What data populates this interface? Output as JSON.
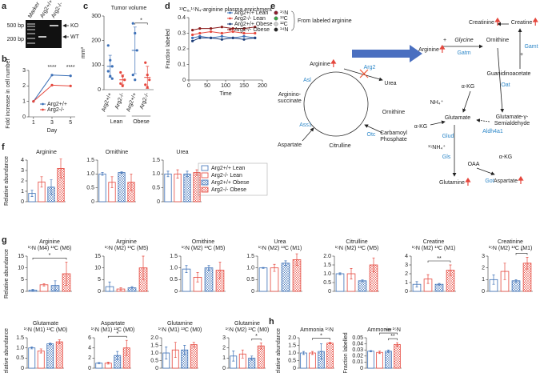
{
  "gel": {
    "panel": "a",
    "lanes": [
      "Marker",
      "Arg2+/+",
      "Arg2-/-"
    ],
    "sizes": [
      "500 bp",
      "200 bp"
    ],
    "bands": [
      "KO",
      "WT"
    ]
  },
  "diagram": {
    "panel": "e",
    "legend": [
      "¹⁵N",
      "¹³C",
      "¹²C",
      "¹⁴N"
    ],
    "legend_colors": [
      "#8b1c2c",
      "#3aa346",
      "#cfcfcf",
      "#222222"
    ],
    "legend_title": "From labeled arginine",
    "nodes": [
      "Arginine",
      "Urea",
      "Ornithine",
      "Citrulline",
      "Aspartate",
      "Arginino-",
      "succinate",
      "Carbamoyl",
      "Phosphate",
      "Asl",
      "Ass1",
      "Otc",
      "Arg2",
      "Arginine",
      "+",
      "Glycine",
      "Ornithine",
      "+",
      "Guanidinoacetate",
      "Gatm",
      "Creatine",
      "Creatinine",
      "Gamt",
      "α-KG",
      "Oat",
      "Glutamate",
      "Glutamate-γ-",
      "Semialdehyde",
      "Aldh4a1",
      "NH₄⁺",
      "α-KG",
      "Glud",
      "¹⁵NH₄⁺",
      "Gls",
      "Glutamine",
      "OAA",
      "α-KG",
      "Aspartate",
      "Got"
    ]
  },
  "legend": {
    "series": [
      {
        "name": "Arg2+/+ Lean",
        "color": "#3b6fb6",
        "pattern": "open"
      },
      {
        "name": "Arg2-/- Lean",
        "color": "#e5473d",
        "pattern": "open"
      },
      {
        "name": "Arg2+/+ Obese",
        "color": "#3b6fb6",
        "pattern": "hatched"
      },
      {
        "name": "Arg2-/- Obese",
        "color": "#e5473d",
        "pattern": "hatched"
      }
    ]
  },
  "chart_data": [
    {
      "panel": "b",
      "type": "line",
      "ylabel": "Fold increase in cell number",
      "xlabel": "Day",
      "x": [
        1,
        3,
        5
      ],
      "xlim": [
        0.5,
        5.5
      ],
      "xticks": [
        1,
        3,
        5
      ],
      "ylim": [
        0,
        3
      ],
      "yticks": [
        0,
        1,
        2,
        3
      ],
      "legend": "lower right",
      "series": [
        {
          "name": "Arg2+/+",
          "color": "#3b6fb6",
          "values": [
            1,
            2.7,
            2.65
          ]
        },
        {
          "name": "Arg2-/-",
          "color": "#e5473d",
          "values": [
            1,
            2.05,
            2.0
          ]
        }
      ],
      "annotations": [
        {
          "text": "****",
          "x": 3
        },
        {
          "text": "****",
          "x": 5
        }
      ]
    },
    {
      "panel": "c",
      "type": "dot",
      "title": "Tumor volume",
      "ylabel": "mm³",
      "categories": [
        "Arg2+/+",
        "Arg2-/-",
        "Arg2+/+",
        "Arg2-/-"
      ],
      "groups": [
        "Lean",
        "Obese"
      ],
      "colors": [
        "#3b6fb6",
        "#e5473d",
        "#3b6fb6",
        "#e5473d"
      ],
      "values": [
        95,
        40,
        160,
        50
      ],
      "errors": [
        45,
        20,
        95,
        45
      ],
      "points": [
        [
          180,
          120,
          95,
          75,
          55,
          45
        ],
        [
          70,
          55,
          40,
          25,
          15
        ],
        [
          270,
          230,
          160,
          60,
          40
        ],
        [
          110,
          60,
          40,
          20,
          10
        ]
      ],
      "ylim": [
        0,
        300
      ],
      "yticks": [
        0,
        100,
        200,
        300
      ],
      "sig": [
        {
          "text": "*",
          "bars": [
            2,
            3
          ]
        }
      ]
    },
    {
      "panel": "d",
      "type": "line",
      "title": "¹³C₆,¹⁵N₄-arginine plasma enrichment",
      "ylabel": "Fraction labeled",
      "xlabel": "Time",
      "x": [
        10,
        30,
        60,
        90,
        120,
        150,
        180
      ],
      "xlim": [
        0,
        200
      ],
      "xticks": [
        0,
        50,
        100,
        150,
        200
      ],
      "ylim": [
        0,
        0.4
      ],
      "yticks": [
        0,
        0.1,
        0.2,
        0.3,
        0.4
      ],
      "legend": "upper right",
      "series": [
        {
          "name": "Arg2+/+ Lean",
          "color": "#3b6fb6",
          "values": [
            0.27,
            0.28,
            0.27,
            0.28,
            0.27,
            0.28,
            0.27
          ]
        },
        {
          "name": "Arg2-/- Lean",
          "color": "#e5473d",
          "values": [
            0.29,
            0.3,
            0.31,
            0.3,
            0.31,
            0.3,
            0.3
          ]
        },
        {
          "name": "Arg2+/+ Obese",
          "color": "#1f3f7a",
          "values": [
            0.25,
            0.27,
            0.27,
            0.26,
            0.27,
            0.26,
            0.27
          ]
        },
        {
          "name": "Arg2-/- Obese",
          "color": "#8b1a1a",
          "values": [
            0.32,
            0.33,
            0.33,
            0.34,
            0.33,
            0.33,
            0.34
          ]
        }
      ]
    },
    {
      "panel": "f",
      "type": "bar",
      "title": "Arginine",
      "ylabel": "Relative abundance",
      "values": [
        0.8,
        1.9,
        1.4,
        3.2
      ],
      "errors": [
        0.3,
        0.5,
        0.7,
        0.9
      ],
      "ylim": [
        0,
        4
      ],
      "yticks": [
        0,
        1,
        2,
        3,
        4
      ]
    },
    {
      "type": "bar",
      "title": "Ornithine",
      "values": [
        1.0,
        0.7,
        1.05,
        0.7
      ],
      "errors": [
        0.05,
        0.2,
        0.03,
        0.3
      ],
      "ylim": [
        0,
        1.5
      ],
      "yticks": [
        0,
        0.5,
        {
          "value": 1,
          "label": "1.0"
        },
        1.5
      ]
    },
    {
      "type": "bar",
      "title": "Urea",
      "values": [
        1.0,
        1.0,
        1.0,
        1.05
      ],
      "errors": [
        0.1,
        0.15,
        0.1,
        0.1
      ],
      "ylim": [
        0,
        1.5
      ],
      "yticks": [
        0,
        0.5,
        {
          "value": 1,
          "label": "1.0"
        },
        1.5
      ]
    },
    {
      "panel": "g",
      "type": "bar",
      "title": "Arginine",
      "subtitle": "¹⁵N (M4) ¹³C (M6)",
      "ylabel": "Relative abundance",
      "values": [
        0.5,
        2.8,
        2.5,
        7.5
      ],
      "errors": [
        0.3,
        0.5,
        2,
        5
      ],
      "ylim": [
        0,
        15
      ],
      "yticks": [
        0,
        5,
        10,
        15
      ],
      "sig": [
        {
          "text": "*",
          "bars": [
            0,
            3
          ]
        }
      ]
    },
    {
      "type": "bar",
      "title": "Arginine",
      "subtitle": "¹⁵N (M2) ¹³C (M5)",
      "values": [
        2,
        1,
        1.5,
        10
      ],
      "errors": [
        2,
        0.5,
        0.5,
        5
      ],
      "ylim": [
        0,
        15
      ],
      "yticks": [
        0,
        5,
        10,
        15
      ]
    },
    {
      "type": "bar",
      "title": "Ornithine",
      "subtitle": "¹⁵N (M2) ¹³C (M5)",
      "values": [
        0.95,
        0.6,
        1.0,
        0.9
      ],
      "errors": [
        0.15,
        0.2,
        0.1,
        0.35
      ],
      "ylim": [
        0,
        1.5
      ],
      "yticks": [
        0,
        0.5,
        {
          "value": 1,
          "label": "1.0"
        },
        1.5
      ]
    },
    {
      "type": "bar",
      "title": "Urea",
      "subtitle": "¹⁵N (M2) ¹³C (M1)",
      "values": [
        1.0,
        1.0,
        1.2,
        1.35
      ],
      "errors": [
        0.02,
        0.15,
        0.1,
        0.25
      ],
      "ylim": [
        0,
        1.5
      ],
      "yticks": [
        0,
        0.5,
        {
          "value": 1,
          "label": "1.0"
        },
        1.5
      ]
    },
    {
      "type": "bar",
      "title": "Citrulline",
      "subtitle": "¹⁵N (M2) ¹³C (M5)",
      "values": [
        1.0,
        1.0,
        0.6,
        1.5
      ],
      "errors": [
        0.05,
        0.3,
        0.05,
        0.4
      ],
      "ylim": [
        0,
        2
      ],
      "yticks": [
        0,
        0.5,
        {
          "value": 1,
          "label": "1.0"
        },
        1.5,
        {
          "value": 2,
          "label": "2.0"
        }
      ]
    },
    {
      "type": "bar",
      "title": "Creatine",
      "subtitle": "¹⁵N (M2) ¹³C (M1)",
      "values": [
        0.8,
        1.4,
        0.8,
        2.4
      ],
      "errors": [
        0.3,
        0.5,
        0.1,
        0.6
      ],
      "ylim": [
        0,
        4
      ],
      "yticks": [
        0,
        1,
        2,
        3,
        4
      ],
      "sig": [
        {
          "text": "**",
          "bars": [
            1,
            3
          ]
        }
      ]
    },
    {
      "type": "bar",
      "title": "Creatinine",
      "subtitle": "¹⁵N (M2) ¹³C (M1)",
      "values": [
        1.0,
        1.7,
        0.9,
        2.4
      ],
      "errors": [
        0.4,
        0.7,
        0.1,
        0.5
      ],
      "ylim": [
        0,
        3
      ],
      "yticks": [
        0,
        1,
        2,
        3
      ],
      "sig": [
        {
          "text": "*",
          "bars": [
            2,
            3
          ]
        }
      ]
    },
    {
      "type": "bar",
      "title": "Glutamate",
      "subtitle": "¹⁵N (M1) ¹³C (M0)",
      "ylabel": "Relative abundance",
      "values": [
        1.0,
        0.85,
        1.2,
        1.3
      ],
      "errors": [
        0.05,
        0.1,
        0.05,
        0.1
      ],
      "ylim": [
        0,
        1.5
      ],
      "yticks": [
        0,
        0.5,
        {
          "value": 1,
          "label": "1.0"
        },
        1.5
      ]
    },
    {
      "type": "bar",
      "title": "Aspartate",
      "subtitle": "¹⁵N (M1) ¹³C (M0)",
      "values": [
        1.0,
        1.0,
        2.5,
        4.0
      ],
      "errors": [
        0.1,
        0.2,
        0.8,
        1.5
      ],
      "ylim": [
        0,
        6
      ],
      "yticks": [
        0,
        2,
        4,
        6
      ],
      "sig": [
        {
          "text": "*",
          "bars": [
            1,
            3
          ]
        }
      ]
    },
    {
      "type": "bar",
      "title": "Glutamine",
      "subtitle": "¹⁵N (M1) ¹³C (M0)",
      "values": [
        1.0,
        1.2,
        1.2,
        1.55
      ],
      "errors": [
        0.4,
        0.5,
        0.3,
        0.15
      ],
      "ylim": [
        0,
        2
      ],
      "yticks": [
        0,
        0.5,
        {
          "value": 1,
          "label": "1.0"
        },
        1.5,
        {
          "value": 2,
          "label": "2.0"
        }
      ]
    },
    {
      "type": "bar",
      "title": "Glutamine",
      "subtitle": "¹⁵N (M2) ¹³C (M0)",
      "values": [
        1.2,
        1.4,
        1.0,
        2.2
      ],
      "errors": [
        0.5,
        0.4,
        0.2,
        0.3
      ],
      "ylim": [
        0,
        3
      ],
      "yticks": [
        0,
        1,
        2,
        3
      ],
      "sig": [
        {
          "text": "*",
          "bars": [
            2,
            3
          ]
        }
      ]
    },
    {
      "panel": "h",
      "type": "bar",
      "title": "Ammonia ¹⁵N",
      "ylabel": "Relative abundance",
      "values": [
        1.0,
        1.0,
        1.1,
        1.65
      ],
      "errors": [
        0.1,
        0.1,
        0.5,
        0.05
      ],
      "ylim": [
        0,
        2
      ],
      "yticks": [
        0,
        0.5,
        {
          "value": 1,
          "label": "1.0"
        },
        1.5,
        {
          "value": 2,
          "label": "2.0"
        }
      ],
      "sig": [
        {
          "text": "*",
          "bars": [
            1,
            3
          ]
        }
      ]
    },
    {
      "type": "bar",
      "title": "Ammonia ¹⁵N",
      "ylabel": "Fraction labelled",
      "values": [
        0.028,
        0.026,
        0.028,
        0.039
      ],
      "errors": [
        0.001,
        0.002,
        0.002,
        0.003
      ],
      "ylim": [
        0,
        0.05
      ],
      "yticks": [
        0,
        0.01,
        0.02,
        0.03,
        0.04,
        0.05
      ],
      "sig": [
        {
          "text": "**",
          "bars": [
            2,
            3
          ]
        },
        {
          "text": "***",
          "bars": [
            1,
            3
          ]
        }
      ]
    }
  ]
}
